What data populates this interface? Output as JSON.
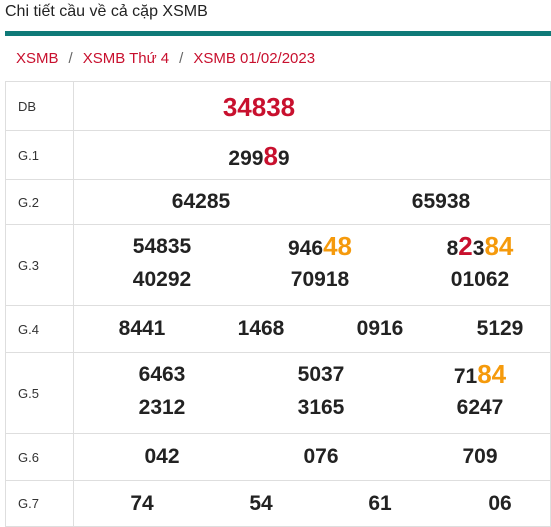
{
  "header": {
    "title": "Chi tiết cầu về cả cặp XSMB"
  },
  "breadcrumb": [
    {
      "label": "XSMB"
    },
    {
      "label": "XSMB Thứ 4"
    },
    {
      "label": "XSMB 01/02/2023"
    }
  ],
  "prizes": {
    "db": {
      "label": "DB",
      "values": [
        "34838"
      ]
    },
    "g1": {
      "label": "G.1",
      "values": [
        "29989"
      ],
      "highlight": "8"
    },
    "g2": {
      "label": "G.2",
      "values": [
        "64285",
        "65938"
      ]
    },
    "g3": {
      "label": "G.3",
      "values": [
        "54835",
        "94648",
        "82384",
        "40292",
        "70918",
        "01062"
      ]
    },
    "g4": {
      "label": "G.4",
      "values": [
        "8441",
        "1468",
        "0916",
        "5129"
      ]
    },
    "g5": {
      "label": "G.5",
      "values": [
        "6463",
        "5037",
        "7184",
        "2312",
        "3165",
        "6247"
      ]
    },
    "g6": {
      "label": "G.6",
      "values": [
        "042",
        "076",
        "709"
      ]
    },
    "g7": {
      "label": "G.7",
      "values": [
        "74",
        "54",
        "61",
        "06"
      ]
    }
  },
  "colors": {
    "accent_teal": "#0f7a78",
    "highlight_red": "#c8102e",
    "highlight_orange": "#f59a0c"
  }
}
